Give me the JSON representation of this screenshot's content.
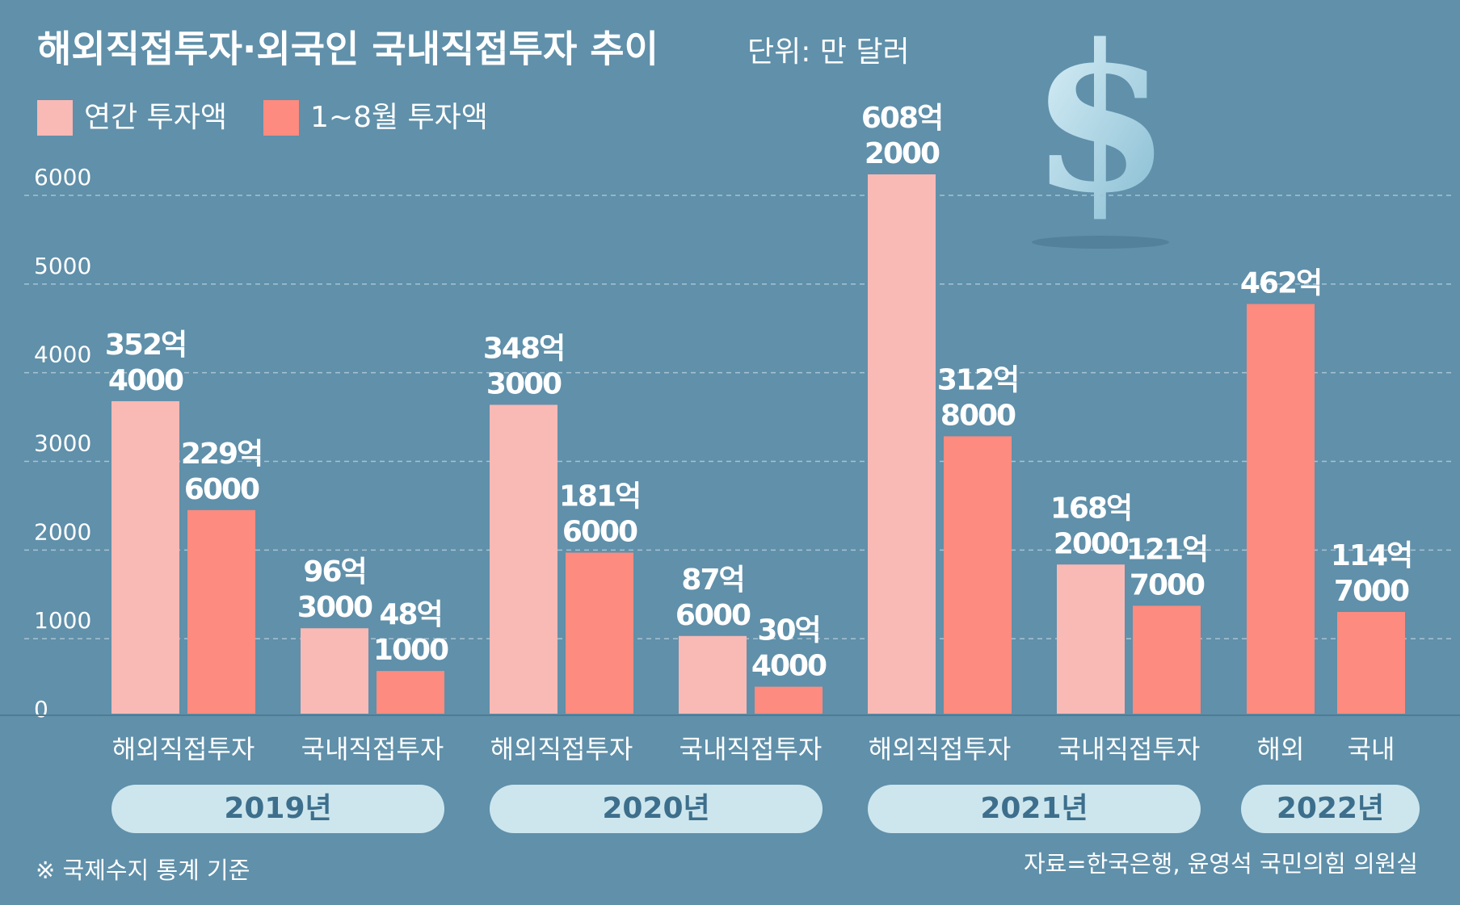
{
  "chart_data": {
    "type": "bar",
    "title": "해외직접투자·외국인 국내직접투자 추이",
    "subtitle": "단위: 만 달러",
    "categories": [
      "해외직접투자",
      "국내직접투자",
      "해외직접투자",
      "국내직접투자",
      "해외직접투자",
      "국내직접투자",
      "해외",
      "국내"
    ],
    "groups": [
      "2019년",
      "2020년",
      "2021년",
      "2022년"
    ],
    "series": [
      {
        "name": "연간 투자액",
        "color": "#f9b9b5",
        "values": [
          3524,
          963,
          3483,
          876,
          6082,
          1682,
          null,
          null
        ],
        "value_labels": [
          [
            "352억",
            "4000"
          ],
          [
            "96억",
            "3000"
          ],
          [
            "348억",
            "3000"
          ],
          [
            "87억",
            "6000"
          ],
          [
            "608억",
            "2000"
          ],
          [
            "168억",
            "2000"
          ],
          null,
          null
        ]
      },
      {
        "name": "1~8월 투자액",
        "color": "#fd8b7f",
        "values": [
          2296,
          481,
          1816,
          304,
          3128,
          1217,
          4620,
          1147
        ],
        "value_labels": [
          [
            "229억",
            "6000"
          ],
          [
            "48억",
            "1000"
          ],
          [
            "181억",
            "6000"
          ],
          [
            "30억",
            "4000"
          ],
          [
            "312억",
            "8000"
          ],
          [
            "121억",
            "7000"
          ],
          [
            "462억"
          ],
          [
            "114억",
            "7000"
          ]
        ]
      }
    ],
    "ylim": [
      0,
      6000
    ],
    "yticks": [
      0,
      1000,
      2000,
      3000,
      4000,
      5000,
      6000
    ],
    "grid": true,
    "note": "※ 국제수지 통계 기준",
    "source": "자료=한국은행, 윤영석 국민의힘 의원실"
  }
}
